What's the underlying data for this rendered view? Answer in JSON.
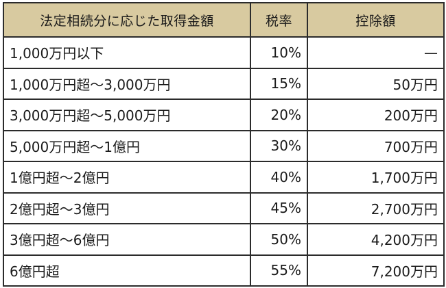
{
  "table": {
    "headers": {
      "range": "法定相続分に応じた取得金額",
      "rate": "税率",
      "deduction": "控除額"
    },
    "rows": [
      {
        "range": "1,000万円以下",
        "rate": "10%",
        "deduction": "—"
      },
      {
        "range": "1,000万円超～3,000万円",
        "rate": "15%",
        "deduction": "50万円"
      },
      {
        "range": "3,000万円超～5,000万円",
        "rate": "20%",
        "deduction": "200万円"
      },
      {
        "range": "5,000万円超～1億円",
        "rate": "30%",
        "deduction": "700万円"
      },
      {
        "range": "1億円超～2億円",
        "rate": "40%",
        "deduction": "1,700万円"
      },
      {
        "range": "2億円超～3億円",
        "rate": "45%",
        "deduction": "2,700万円"
      },
      {
        "range": "3億円超～6億円",
        "rate": "50%",
        "deduction": "4,200万円"
      },
      {
        "range": "6億円超",
        "rate": "55%",
        "deduction": "7,200万円"
      }
    ]
  },
  "colors": {
    "header_background": "#d8caa0",
    "border": "#2b2b2b",
    "text": "#1a1a1a"
  }
}
